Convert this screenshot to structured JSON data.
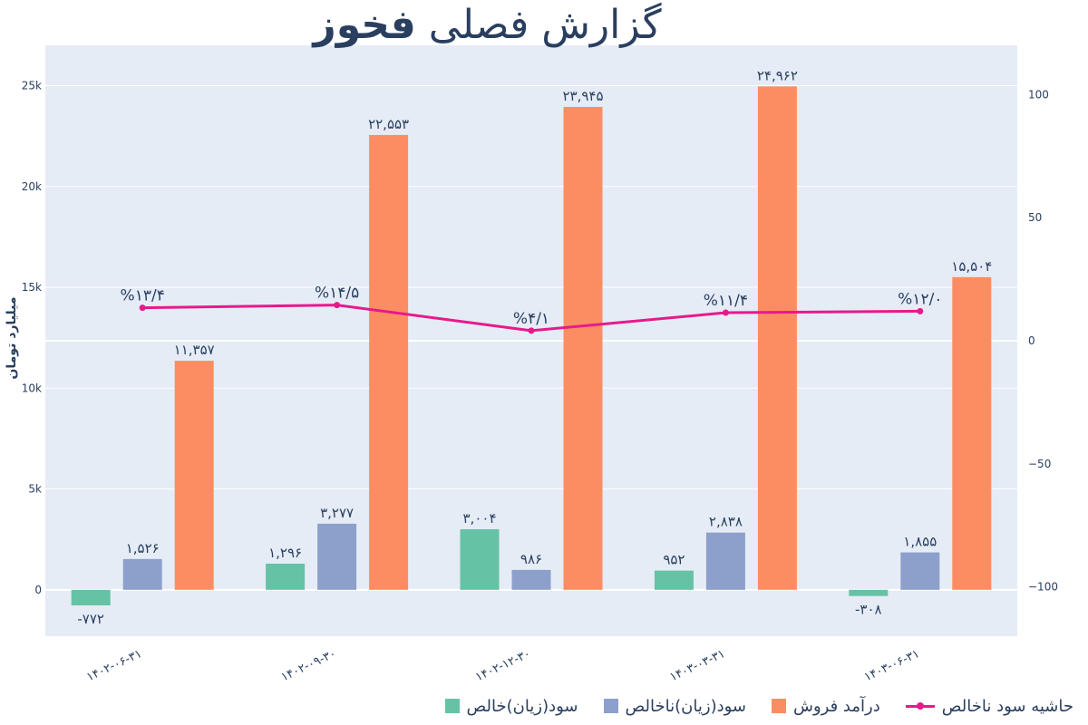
{
  "title": {
    "light": "گزارش فصلی",
    "bold": "فخوز"
  },
  "colors": {
    "net": "#66c2a5",
    "gross": "#8da0cb",
    "revenue": "#fc8d62",
    "margin": "#e8198b",
    "plot_bg": "#e5ecf6"
  },
  "legend": [
    {
      "label": "حاشیه سود ناخالص",
      "kind": "line",
      "color": "#e8198b"
    },
    {
      "label": "درآمد فروش",
      "kind": "bar",
      "color": "#fc8d62"
    },
    {
      "label": "سود(زیان)ناخالص",
      "kind": "bar",
      "color": "#8da0cb"
    },
    {
      "label": "سود(زیان)خالص",
      "kind": "bar",
      "color": "#66c2a5"
    }
  ],
  "chart_data": {
    "type": "bar",
    "title": "گزارش فصلی فخوز",
    "ylabel": "میلیارد تومان",
    "categories": [
      "۱۴۰۲-۰۶-۳۱",
      "۱۴۰۲-۰۹-۳۰",
      "۱۴۰۲-۱۲-۳۰",
      "۱۴۰۳-۰۳-۳۱",
      "۱۴۰۳-۰۶-۳۱"
    ],
    "series": [
      {
        "name": "سود(زیان)خالص",
        "values": [
          -772,
          1296,
          3004,
          952,
          -308
        ],
        "labels": [
          "-۷۷۲",
          "۱,۲۹۶",
          "۳,۰۰۴",
          "۹۵۲",
          "-۳۰۸"
        ]
      },
      {
        "name": "سود(زیان)ناخالص",
        "values": [
          1526,
          3277,
          986,
          2838,
          1855
        ],
        "labels": [
          "۱,۵۲۶",
          "۳,۲۷۷",
          "۹۸۶",
          "۲,۸۳۸",
          "۱,۸۵۵"
        ]
      },
      {
        "name": "درآمد فروش",
        "values": [
          11357,
          22553,
          23945,
          24962,
          15504
        ],
        "labels": [
          "۱۱,۳۵۷",
          "۲۲,۵۵۳",
          "۲۳,۹۴۵",
          "۲۴,۹۶۲",
          "۱۵,۵۰۴"
        ]
      }
    ],
    "line_series": {
      "name": "حاشیه سود ناخالص",
      "axis": "right",
      "values": [
        13.4,
        14.5,
        4.1,
        11.4,
        12.0
      ],
      "labels": [
        "%۱۳/۴",
        "%۱۴/۵",
        "%۴/۱",
        "%۱۱/۴",
        "%۱۲/۰"
      ]
    },
    "ylim": [
      -2300,
      27000
    ],
    "y_ticks": [
      0,
      5000,
      10000,
      15000,
      20000,
      25000
    ],
    "y_tick_labels": [
      "0",
      "5k",
      "10k",
      "15k",
      "20k",
      "25k"
    ],
    "y2lim": [
      -120,
      120
    ],
    "y2_ticks": [
      -100,
      -50,
      0,
      50,
      100
    ],
    "y2_tick_labels": [
      "−100",
      "−50",
      "0",
      "50",
      "100"
    ],
    "grid": true,
    "legend_position": "bottom-right"
  }
}
